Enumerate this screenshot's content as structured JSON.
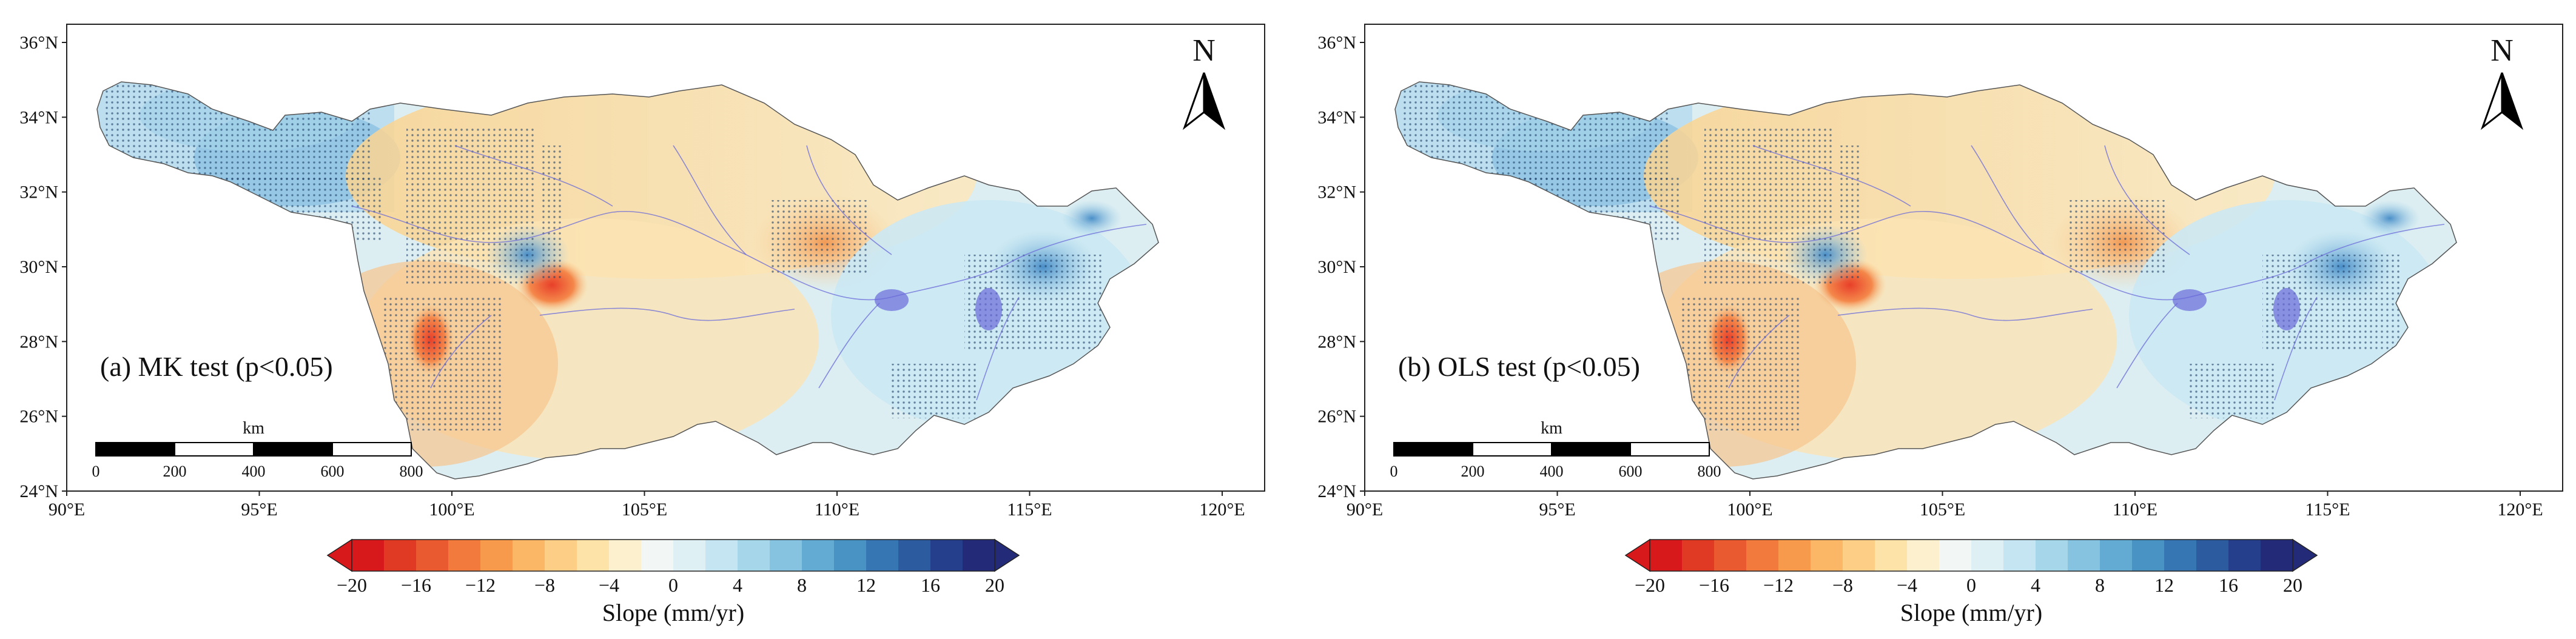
{
  "panels": [
    {
      "id": "a",
      "label": "(a) MK test (p<0.05)",
      "lat_ticks": [
        "36°N",
        "34°N",
        "32°N",
        "30°N",
        "28°N",
        "26°N",
        "24°N"
      ],
      "lon_ticks": [
        "90°E",
        "95°E",
        "100°E",
        "105°E",
        "110°E",
        "115°E",
        "120°E"
      ],
      "scalebar": {
        "unit": "km",
        "ticks": [
          "0",
          "200",
          "400",
          "600",
          "800"
        ]
      },
      "north": "N"
    },
    {
      "id": "b",
      "label": "(b) OLS test (p<0.05)",
      "lat_ticks": [
        "36°N",
        "34°N",
        "32°N",
        "30°N",
        "28°N",
        "26°N",
        "24°N"
      ],
      "lon_ticks": [
        "90°E",
        "95°E",
        "100°E",
        "105°E",
        "110°E",
        "115°E",
        "120°E"
      ],
      "scalebar": {
        "unit": "km",
        "ticks": [
          "0",
          "200",
          "400",
          "600",
          "800"
        ]
      },
      "north": "N"
    }
  ],
  "colorbar": {
    "title": "Slope (mm/yr)",
    "ticks": [
      "−20",
      "−16",
      "−12",
      "−8",
      "−4",
      "0",
      "4",
      "8",
      "12",
      "16",
      "20"
    ],
    "min": -20,
    "max": 20,
    "colors": [
      "#d7191c",
      "#e03a25",
      "#ea5a30",
      "#f27a3c",
      "#f79a4c",
      "#fbb766",
      "#fdcf86",
      "#fde3a8",
      "#fdf0cf",
      "#f2f7f5",
      "#dff0f5",
      "#c4e5f1",
      "#a6d6ea",
      "#86c3e0",
      "#64abd3",
      "#4892c4",
      "#3677b3",
      "#2c5ba0",
      "#263f8c",
      "#232a78"
    ]
  },
  "colors": {
    "land_basin": "#dceef2",
    "river": "#6a6ad8",
    "stipple": "#1b3d66"
  }
}
